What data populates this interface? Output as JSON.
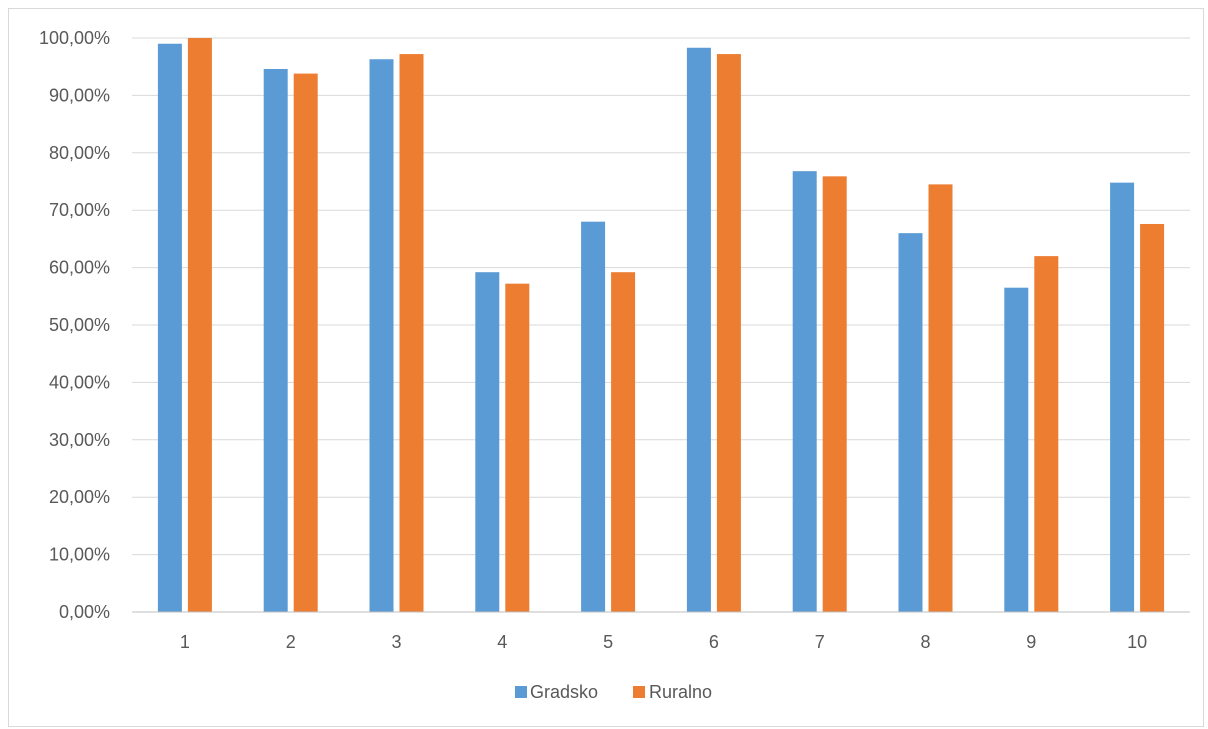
{
  "chart_data": {
    "type": "bar",
    "categories": [
      "1",
      "2",
      "3",
      "4",
      "5",
      "6",
      "7",
      "8",
      "9",
      "10"
    ],
    "series": [
      {
        "name": "Gradsko",
        "color": "#5b9bd5",
        "values": [
          99.0,
          94.6,
          96.3,
          59.2,
          68.0,
          98.3,
          76.8,
          66.0,
          56.5,
          74.8
        ]
      },
      {
        "name": "Ruralno",
        "color": "#ed7d31",
        "values": [
          100.0,
          93.8,
          97.2,
          57.2,
          59.2,
          97.2,
          75.9,
          74.5,
          62.0,
          67.6
        ]
      }
    ],
    "y_ticks": [
      "0,00%",
      "10,00%",
      "20,00%",
      "30,00%",
      "40,00%",
      "50,00%",
      "60,00%",
      "70,00%",
      "80,00%",
      "90,00%",
      "100,00%"
    ],
    "ylim": [
      0,
      100
    ],
    "title": "",
    "xlabel": "",
    "ylabel": "",
    "grid": true,
    "legend_position": "bottom"
  }
}
